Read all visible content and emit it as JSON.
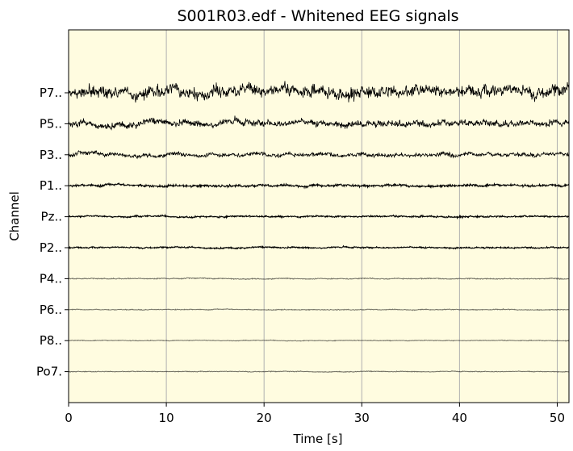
{
  "chart_data": {
    "type": "line",
    "title": "S001R03.edf - Whitened EEG signals",
    "xlabel": "Time [s]",
    "ylabel": "Channel",
    "xlim": [
      0,
      51.2
    ],
    "xticks": [
      0,
      10,
      20,
      30,
      40,
      50
    ],
    "grid": "vertical",
    "background_color": "#fffce0",
    "trace_color": "#000000",
    "channels": [
      "P7..",
      "P5..",
      "P3..",
      "P1..",
      "Pz..",
      "P2..",
      "P4..",
      "P6..",
      "P8..",
      "Po7."
    ],
    "relative_amplitude": [
      1.0,
      0.55,
      0.35,
      0.2,
      0.14,
      0.12,
      0.08,
      0.07,
      0.06,
      0.06
    ]
  }
}
